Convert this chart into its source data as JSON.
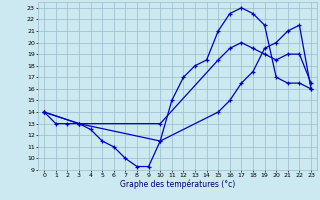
{
  "xlabel": "Graphe des températures (°c)",
  "bg_color": "#cce8f0",
  "line_color": "#0000cc",
  "grid_color": "#99bbcc",
  "xlim": [
    -0.5,
    23.5
  ],
  "ylim": [
    9,
    23.5
  ],
  "xticks": [
    0,
    1,
    2,
    3,
    4,
    5,
    6,
    7,
    8,
    9,
    10,
    11,
    12,
    13,
    14,
    15,
    16,
    17,
    18,
    19,
    20,
    21,
    22,
    23
  ],
  "yticks": [
    9,
    10,
    11,
    12,
    13,
    14,
    15,
    16,
    17,
    18,
    19,
    20,
    21,
    22,
    23
  ],
  "line1_x": [
    0,
    1,
    2,
    3,
    4,
    5,
    6,
    7,
    8,
    9,
    10,
    11,
    12,
    13,
    14,
    15,
    16,
    17,
    18,
    19,
    20,
    21,
    22,
    23
  ],
  "line1_y": [
    14,
    13,
    13,
    13,
    12.5,
    11.5,
    11,
    10,
    9.3,
    9.3,
    11.5,
    15,
    17,
    18,
    18.5,
    21,
    22.5,
    23,
    22.5,
    21.5,
    17,
    16.5,
    16.5,
    16
  ],
  "line2_x": [
    0,
    3,
    10,
    15,
    16,
    17,
    18,
    19,
    20,
    21,
    22,
    23
  ],
  "line2_y": [
    14,
    13,
    13,
    18.5,
    19.5,
    20,
    19.5,
    19,
    18.5,
    19,
    19,
    16.5
  ],
  "line3_x": [
    0,
    3,
    10,
    15,
    16,
    17,
    18,
    19,
    20,
    21,
    22,
    23
  ],
  "line3_y": [
    14,
    13,
    11.5,
    14,
    15,
    16.5,
    17.5,
    19.5,
    20,
    21,
    21.5,
    16
  ]
}
